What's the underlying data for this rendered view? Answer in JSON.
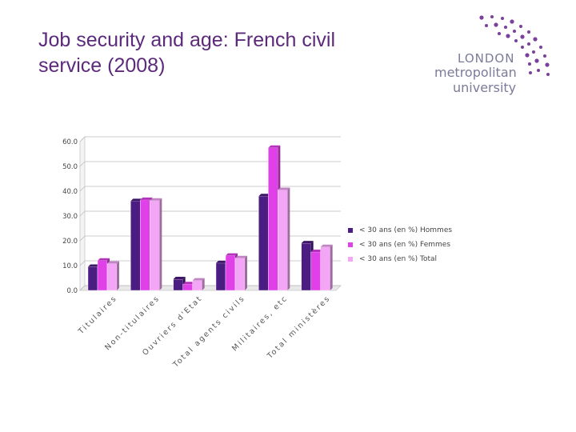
{
  "slide": {
    "title_line1": "Job security and age: French civil",
    "title_line2": "service (2008)"
  },
  "logo": {
    "line1": "LONDON",
    "line2": "metropolitan",
    "line3": "university",
    "dot_color": "#7b3f9e"
  },
  "chart_data": {
    "type": "bar",
    "title": "",
    "xlabel": "",
    "ylabel": "",
    "ylim": [
      0,
      60
    ],
    "yticks": [
      "0.0",
      "10.0",
      "20.0",
      "30.0",
      "40.0",
      "50.0",
      "60.0"
    ],
    "categories": [
      "Titulaires",
      "Non-titulaires",
      "Ouvriers d'Etat",
      "Total agents civils",
      "Militaires, etc",
      "Total ministères"
    ],
    "series": [
      {
        "name": "< 30 ans (en %) Hommes",
        "color": "#4b1d82",
        "values": [
          9.5,
          36.0,
          4.5,
          11.0,
          38.0,
          19.0
        ]
      },
      {
        "name": "< 30 ans (en %) Femmes",
        "color": "#e040e8",
        "values": [
          12.0,
          36.5,
          2.5,
          14.0,
          57.5,
          15.5
        ]
      },
      {
        "name": "< 30 ans (en %) Total",
        "color": "#f3a6f5",
        "values": [
          10.8,
          36.2,
          4.0,
          13.0,
          40.5,
          17.5
        ]
      }
    ],
    "legend_position": "right"
  }
}
